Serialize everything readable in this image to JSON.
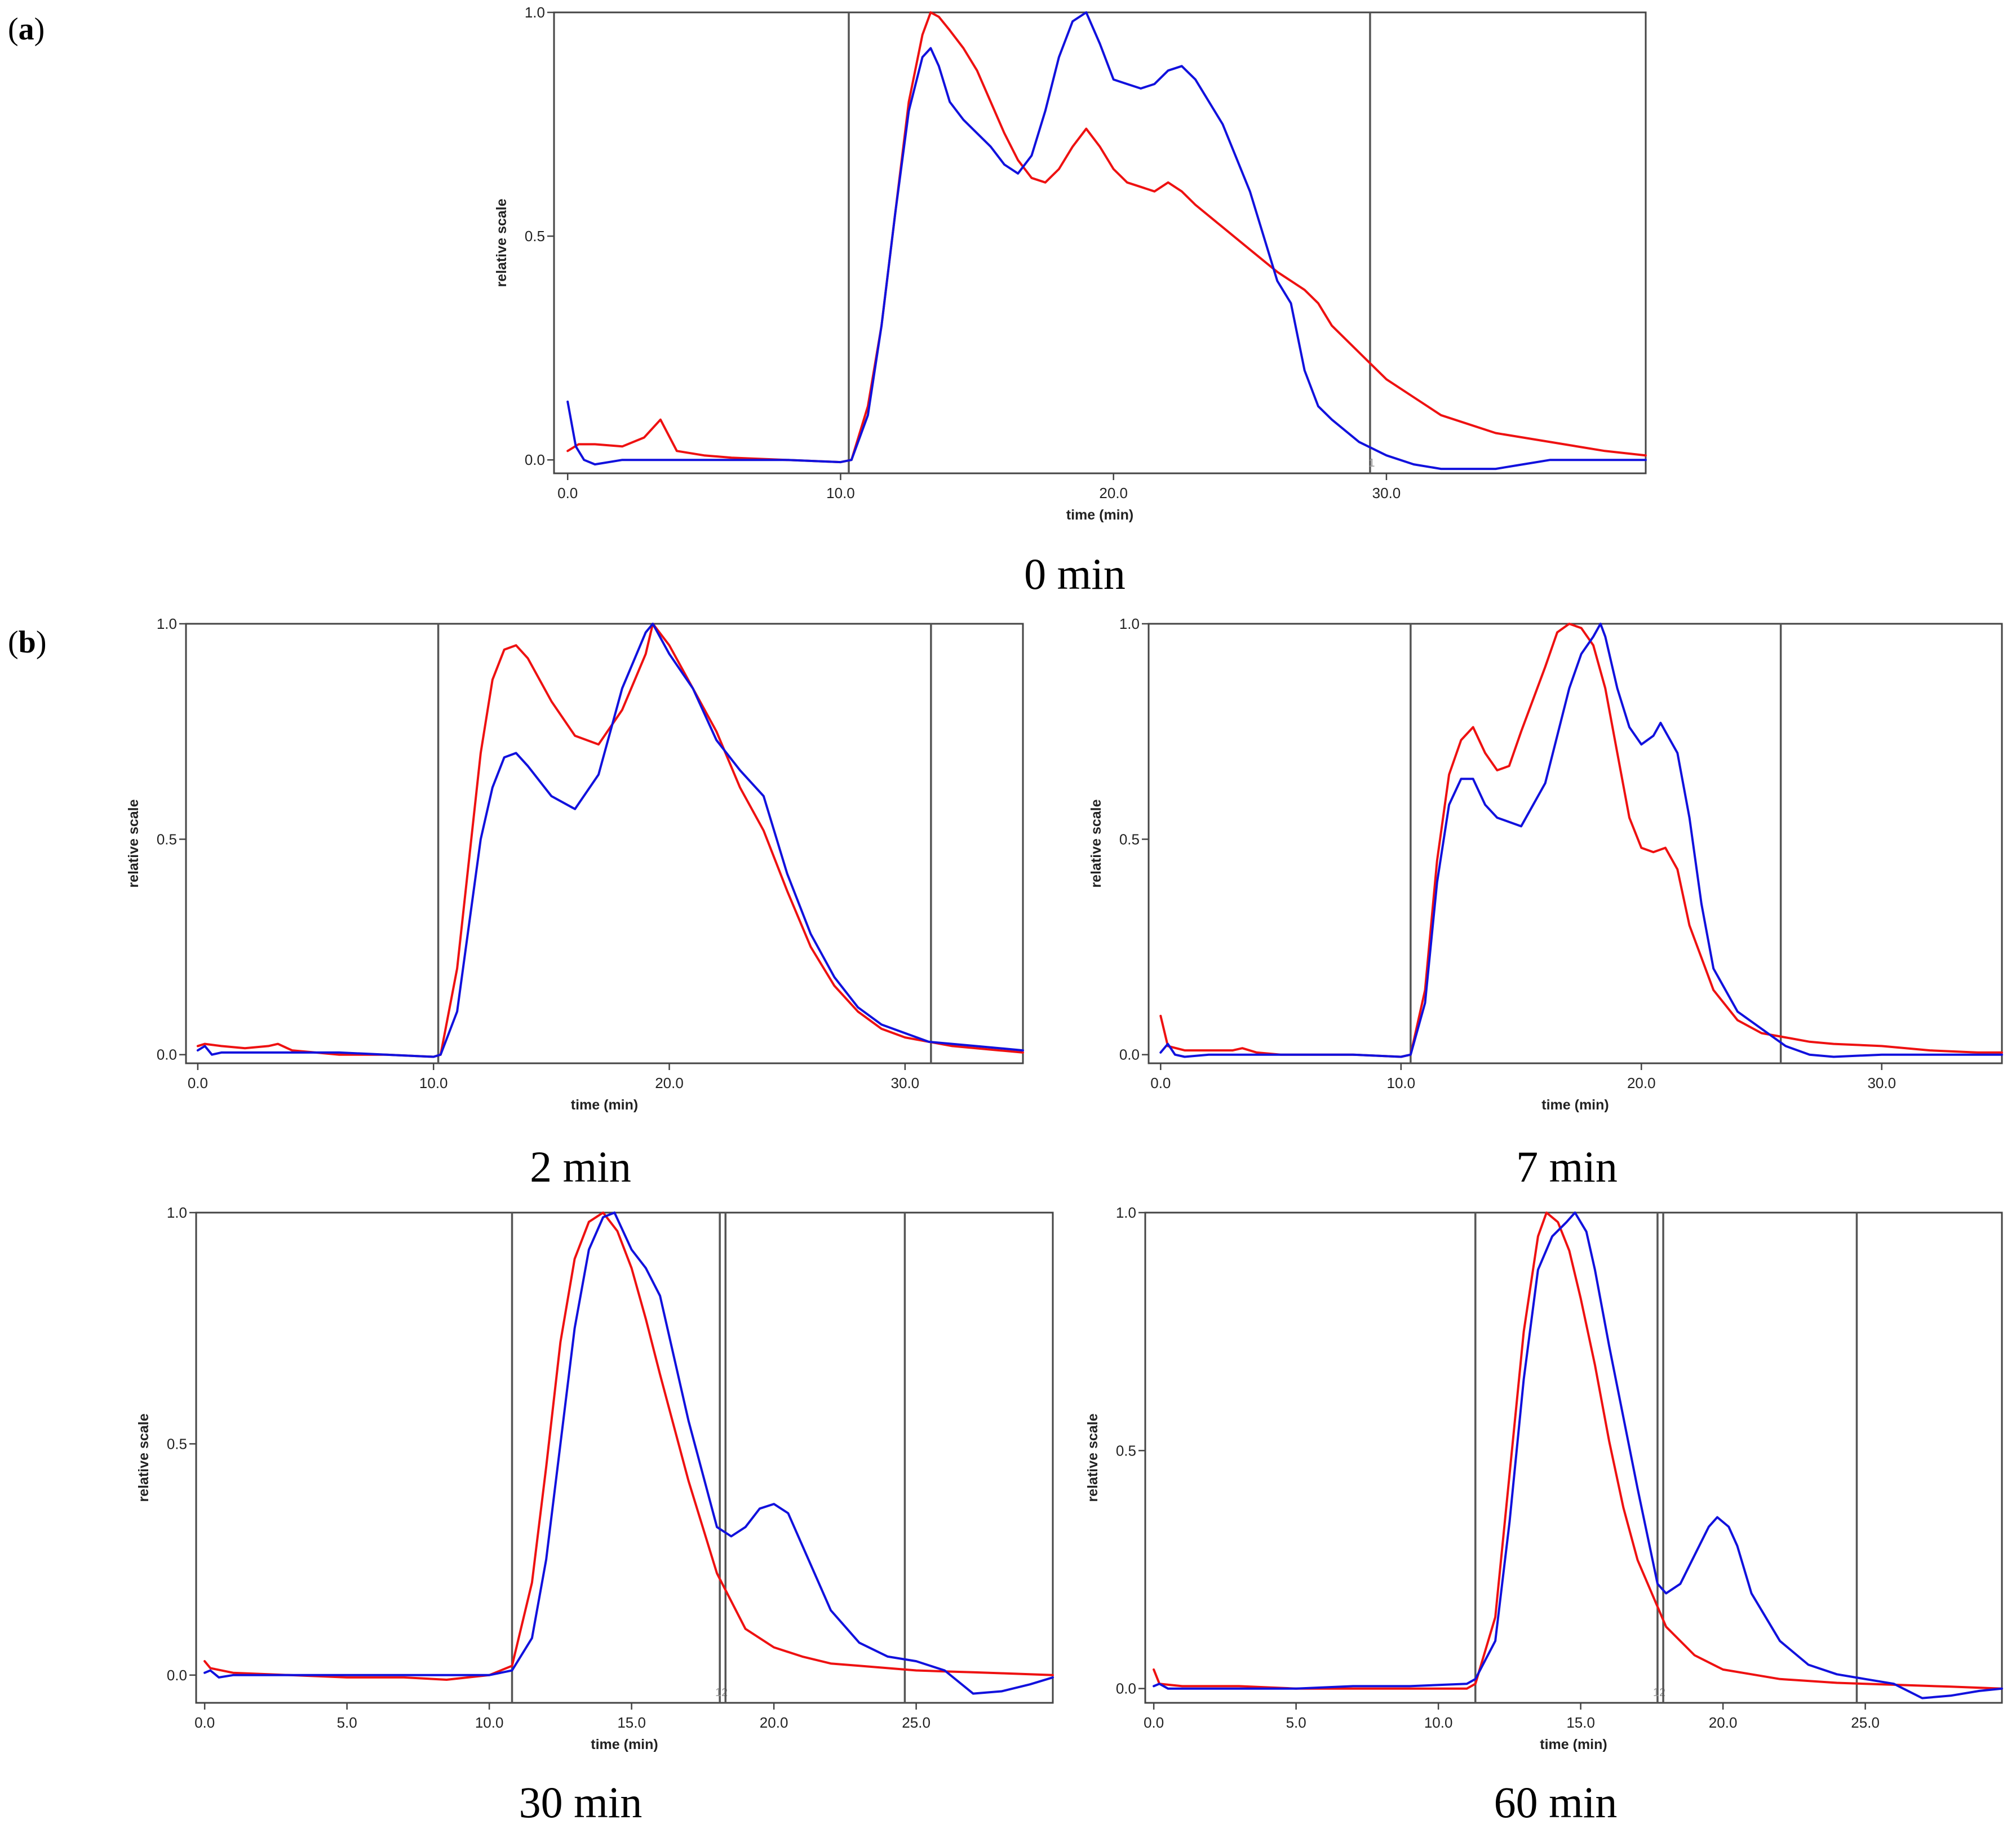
{
  "panel_labels": [
    {
      "open": "(",
      "letter": "a",
      "close": ")"
    },
    {
      "open": "(",
      "letter": "b",
      "close": ")"
    }
  ],
  "colors": {
    "red": "#ee1111",
    "blue": "#1111dd",
    "axis": "#444444",
    "vline": "#555555"
  },
  "chart_data": [
    {
      "type": "line",
      "caption": "0 min",
      "xlabel": "time (min)",
      "ylabel": "relative scale",
      "xlim": [
        -0.5,
        39.5
      ],
      "ylim": [
        -0.03,
        1.0
      ],
      "xticks": [
        0.0,
        10.0,
        20.0,
        30.0
      ],
      "xtick_labels": [
        "0.0",
        "10.0",
        "20.0",
        "30.0"
      ],
      "yticks": [
        0.0,
        0.5,
        1.0
      ],
      "ytick_labels": [
        "0.0",
        "0.5",
        "1.0"
      ],
      "vlines": [
        10.3,
        29.4
      ],
      "vline_markers": [
        "",
        "1"
      ],
      "series": [
        {
          "name": "red",
          "color": "#ee1111",
          "x": [
            0,
            0.4,
            1,
            2,
            2.8,
            3.4,
            4,
            5,
            6,
            8,
            10,
            10.4,
            11,
            11.5,
            12,
            12.5,
            13,
            13.3,
            13.6,
            14,
            14.5,
            15,
            15.5,
            16,
            16.5,
            17,
            17.5,
            18,
            18.5,
            19,
            19.5,
            20,
            20.5,
            21,
            21.5,
            22,
            22.5,
            23,
            24,
            25,
            26,
            27,
            27.5,
            28,
            29,
            30,
            31,
            32,
            34,
            36,
            38,
            39.5
          ],
          "y": [
            0.02,
            0.035,
            0.035,
            0.03,
            0.05,
            0.09,
            0.02,
            0.01,
            0.005,
            0.0,
            -0.005,
            0.0,
            0.12,
            0.3,
            0.55,
            0.8,
            0.95,
            1.0,
            0.99,
            0.96,
            0.92,
            0.87,
            0.8,
            0.73,
            0.67,
            0.63,
            0.62,
            0.65,
            0.7,
            0.74,
            0.7,
            0.65,
            0.62,
            0.61,
            0.6,
            0.62,
            0.6,
            0.57,
            0.52,
            0.47,
            0.42,
            0.38,
            0.35,
            0.3,
            0.24,
            0.18,
            0.14,
            0.1,
            0.06,
            0.04,
            0.02,
            0.01
          ]
        },
        {
          "name": "blue",
          "color": "#1111dd",
          "x": [
            0,
            0.3,
            0.6,
            1,
            2,
            4,
            6,
            8,
            10,
            10.4,
            11,
            11.5,
            12,
            12.5,
            13,
            13.3,
            13.6,
            14,
            14.5,
            15,
            15.5,
            16,
            16.5,
            17,
            17.5,
            18,
            18.5,
            19,
            19.5,
            20,
            20.5,
            21,
            21.5,
            22,
            22.5,
            23,
            24,
            25,
            26,
            26.5,
            27,
            27.5,
            28,
            29,
            30,
            31,
            32,
            33,
            34,
            35,
            36,
            37,
            38,
            39.5
          ],
          "y": [
            0.13,
            0.03,
            0.0,
            -0.01,
            0.0,
            0.0,
            0.0,
            0.0,
            -0.005,
            0.0,
            0.1,
            0.3,
            0.55,
            0.78,
            0.9,
            0.92,
            0.88,
            0.8,
            0.76,
            0.73,
            0.7,
            0.66,
            0.64,
            0.68,
            0.78,
            0.9,
            0.98,
            1.0,
            0.93,
            0.85,
            0.84,
            0.83,
            0.84,
            0.87,
            0.88,
            0.85,
            0.75,
            0.6,
            0.4,
            0.35,
            0.2,
            0.12,
            0.09,
            0.04,
            0.01,
            -0.01,
            -0.02,
            -0.02,
            -0.02,
            -0.01,
            0.0,
            0.0,
            0.0,
            0.0
          ]
        }
      ]
    },
    {
      "type": "line",
      "caption": "2 min",
      "xlabel": "time (min)",
      "ylabel": "relative scale",
      "xlim": [
        -0.5,
        35
      ],
      "ylim": [
        -0.02,
        1.0
      ],
      "xticks": [
        0.0,
        10.0,
        20.0,
        30.0
      ],
      "xtick_labels": [
        "0.0",
        "10.0",
        "20.0",
        "30.0"
      ],
      "yticks": [
        0.0,
        0.5,
        1.0
      ],
      "ytick_labels": [
        "0.0",
        "0.5",
        "1.0"
      ],
      "vlines": [
        10.2,
        31.1
      ],
      "vline_markers": [
        "",
        ""
      ],
      "series": [
        {
          "name": "red",
          "color": "#ee1111",
          "x": [
            0,
            0.3,
            1,
            2,
            3,
            3.4,
            4,
            5,
            6,
            8,
            10,
            10.3,
            11,
            11.5,
            12,
            12.5,
            13,
            13.5,
            14,
            15,
            16,
            17,
            18,
            19,
            19.3,
            20,
            21,
            22,
            23,
            24,
            25,
            26,
            27,
            28,
            29,
            30,
            31,
            32,
            33,
            34,
            35
          ],
          "y": [
            0.02,
            0.025,
            0.02,
            0.015,
            0.02,
            0.025,
            0.01,
            0.005,
            0.0,
            0.0,
            -0.005,
            0.0,
            0.2,
            0.45,
            0.7,
            0.87,
            0.94,
            0.95,
            0.92,
            0.82,
            0.74,
            0.72,
            0.8,
            0.93,
            1.0,
            0.95,
            0.85,
            0.75,
            0.62,
            0.52,
            0.38,
            0.25,
            0.16,
            0.1,
            0.06,
            0.04,
            0.03,
            0.02,
            0.015,
            0.01,
            0.005
          ]
        },
        {
          "name": "blue",
          "color": "#1111dd",
          "x": [
            0,
            0.3,
            0.6,
            1,
            2,
            4,
            6,
            8,
            10,
            10.3,
            11,
            11.5,
            12,
            12.5,
            13,
            13.5,
            14,
            15,
            16,
            17,
            18,
            19,
            19.3,
            20,
            21,
            22,
            23,
            24,
            25,
            26,
            27,
            28,
            29,
            30,
            31,
            32,
            33,
            34,
            35
          ],
          "y": [
            0.01,
            0.02,
            0.0,
            0.005,
            0.005,
            0.005,
            0.005,
            0.0,
            -0.005,
            0.0,
            0.1,
            0.3,
            0.5,
            0.62,
            0.69,
            0.7,
            0.67,
            0.6,
            0.57,
            0.65,
            0.85,
            0.98,
            1.0,
            0.93,
            0.85,
            0.73,
            0.66,
            0.6,
            0.42,
            0.28,
            0.18,
            0.11,
            0.07,
            0.05,
            0.03,
            0.025,
            0.02,
            0.015,
            0.01
          ]
        }
      ]
    },
    {
      "type": "line",
      "caption": "7 min",
      "xlabel": "time (min)",
      "ylabel": "relative scale",
      "xlim": [
        -0.5,
        35
      ],
      "ylim": [
        -0.02,
        1.0
      ],
      "xticks": [
        0.0,
        10.0,
        20.0,
        30.0
      ],
      "xtick_labels": [
        "0.0",
        "10.0",
        "20.0",
        "30.0"
      ],
      "yticks": [
        0.0,
        0.5,
        1.0
      ],
      "ytick_labels": [
        "0.0",
        "0.5",
        "1.0"
      ],
      "vlines": [
        10.4,
        25.8
      ],
      "vline_markers": [
        "",
        ""
      ],
      "series": [
        {
          "name": "red",
          "color": "#ee1111",
          "x": [
            0,
            0.3,
            1,
            2,
            3,
            3.4,
            4,
            5,
            6,
            8,
            10,
            10.4,
            11,
            11.5,
            12,
            12.5,
            13,
            13.5,
            14,
            14.5,
            15,
            16,
            16.5,
            17,
            17.5,
            18,
            18.5,
            19,
            19.5,
            20,
            20.5,
            21,
            21.5,
            22,
            23,
            24,
            25,
            26,
            27,
            28,
            30,
            32,
            34,
            35
          ],
          "y": [
            0.09,
            0.02,
            0.01,
            0.01,
            0.01,
            0.015,
            0.005,
            0.0,
            0.0,
            0.0,
            -0.005,
            0.0,
            0.15,
            0.45,
            0.65,
            0.73,
            0.76,
            0.7,
            0.66,
            0.67,
            0.75,
            0.9,
            0.98,
            1.0,
            0.99,
            0.95,
            0.85,
            0.7,
            0.55,
            0.48,
            0.47,
            0.48,
            0.43,
            0.3,
            0.15,
            0.08,
            0.05,
            0.04,
            0.03,
            0.025,
            0.02,
            0.01,
            0.005,
            0.005
          ]
        },
        {
          "name": "blue",
          "color": "#1111dd",
          "x": [
            0,
            0.3,
            0.6,
            1,
            2,
            4,
            6,
            8,
            10,
            10.4,
            11,
            11.5,
            12,
            12.5,
            13,
            13.5,
            14,
            15,
            16,
            17,
            17.5,
            18,
            18.3,
            18.5,
            19,
            19.5,
            20,
            20.5,
            20.8,
            21,
            21.5,
            22,
            22.5,
            23,
            24,
            25,
            26,
            27,
            28,
            30,
            32,
            34,
            35
          ],
          "y": [
            0.005,
            0.025,
            0.0,
            -0.005,
            0.0,
            0.0,
            0.0,
            0.0,
            -0.005,
            0.0,
            0.12,
            0.4,
            0.58,
            0.64,
            0.64,
            0.58,
            0.55,
            0.53,
            0.63,
            0.85,
            0.93,
            0.97,
            1.0,
            0.97,
            0.85,
            0.76,
            0.72,
            0.74,
            0.77,
            0.75,
            0.7,
            0.55,
            0.35,
            0.2,
            0.1,
            0.06,
            0.02,
            0.0,
            -0.005,
            0.0,
            0.0,
            0.0,
            0.0
          ]
        }
      ]
    },
    {
      "type": "line",
      "caption": "30 min",
      "xlabel": "time (min)",
      "ylabel": "relative scale",
      "xlim": [
        -0.3,
        29.8
      ],
      "ylim": [
        -0.06,
        1.0
      ],
      "xticks": [
        0.0,
        5.0,
        10.0,
        15.0,
        20.0,
        25.0
      ],
      "xtick_labels": [
        "0.0",
        "5.0",
        "10.0",
        "15.0",
        "20.0",
        "25.0"
      ],
      "yticks": [
        0.0,
        0.5,
        1.0
      ],
      "ytick_labels": [
        "0.0",
        "0.5",
        "1.0"
      ],
      "vlines": [
        10.8,
        18.1,
        18.3,
        24.6
      ],
      "vline_markers": [
        "",
        "12",
        "",
        ""
      ],
      "series": [
        {
          "name": "red",
          "color": "#ee1111",
          "x": [
            0,
            0.2,
            1,
            3,
            5,
            7,
            8.5,
            10,
            10.8,
            11.5,
            12,
            12.5,
            13,
            13.5,
            14,
            14.5,
            15,
            15.5,
            16,
            17,
            18,
            19,
            20,
            21,
            22,
            23,
            24,
            25,
            26,
            27,
            28,
            29.8
          ],
          "y": [
            0.03,
            0.015,
            0.005,
            0.0,
            -0.005,
            -0.005,
            -0.01,
            0.0,
            0.02,
            0.2,
            0.45,
            0.72,
            0.9,
            0.98,
            1.0,
            0.96,
            0.88,
            0.77,
            0.65,
            0.42,
            0.22,
            0.1,
            0.06,
            0.04,
            0.025,
            0.02,
            0.015,
            0.01,
            0.008,
            0.006,
            0.004,
            0.0
          ]
        },
        {
          "name": "blue",
          "color": "#1111dd",
          "x": [
            0,
            0.2,
            0.5,
            1,
            3,
            5,
            7,
            9,
            10,
            10.8,
            11.5,
            12,
            12.5,
            13,
            13.5,
            14,
            14.4,
            15,
            15.5,
            16,
            17,
            18,
            18.5,
            19,
            19.5,
            20,
            20.5,
            21,
            22,
            23,
            24,
            25,
            26,
            27,
            28,
            29,
            29.8
          ],
          "y": [
            0.005,
            0.01,
            -0.005,
            0.0,
            0.0,
            0.0,
            0.0,
            0.0,
            0.0,
            0.01,
            0.08,
            0.25,
            0.5,
            0.75,
            0.92,
            0.99,
            1.0,
            0.92,
            0.88,
            0.82,
            0.55,
            0.32,
            0.3,
            0.32,
            0.36,
            0.37,
            0.35,
            0.28,
            0.14,
            0.07,
            0.04,
            0.03,
            0.01,
            -0.04,
            -0.035,
            -0.02,
            -0.005
          ]
        }
      ]
    },
    {
      "type": "line",
      "caption": "60 min",
      "xlabel": "time (min)",
      "ylabel": "relative scale",
      "xlim": [
        -0.3,
        29.8
      ],
      "ylim": [
        -0.03,
        1.0
      ],
      "xticks": [
        0.0,
        5.0,
        10.0,
        15.0,
        20.0,
        25.0
      ],
      "xtick_labels": [
        "0.0",
        "5.0",
        "10.0",
        "15.0",
        "20.0",
        "25.0"
      ],
      "yticks": [
        0.0,
        0.5,
        1.0
      ],
      "ytick_labels": [
        "0.0",
        "0.5",
        "1.0"
      ],
      "vlines": [
        11.3,
        17.7,
        17.9,
        24.7
      ],
      "vline_markers": [
        "",
        "12",
        "",
        ""
      ],
      "series": [
        {
          "name": "red",
          "color": "#ee1111",
          "x": [
            0,
            0.2,
            1,
            3,
            5,
            7,
            9,
            11,
            11.3,
            12,
            12.5,
            13,
            13.5,
            13.8,
            14.2,
            14.6,
            15,
            15.5,
            16,
            16.5,
            17,
            18,
            19,
            20,
            21,
            22,
            24,
            26,
            28,
            29.8
          ],
          "y": [
            0.04,
            0.01,
            0.005,
            0.005,
            0.0,
            0.0,
            0.0,
            0.0,
            0.01,
            0.15,
            0.45,
            0.75,
            0.95,
            1.0,
            0.98,
            0.92,
            0.82,
            0.68,
            0.52,
            0.38,
            0.27,
            0.13,
            0.07,
            0.04,
            0.03,
            0.02,
            0.012,
            0.008,
            0.004,
            0.0
          ]
        },
        {
          "name": "blue",
          "color": "#1111dd",
          "x": [
            0,
            0.2,
            0.5,
            1,
            3,
            5,
            7,
            9,
            11,
            11.3,
            12,
            12.5,
            13,
            13.5,
            14,
            14.5,
            14.8,
            15.2,
            15.5,
            16,
            17,
            17.7,
            18,
            18.5,
            19,
            19.5,
            19.8,
            20.2,
            20.5,
            21,
            22,
            23,
            24,
            25,
            26,
            27,
            28,
            29,
            29.8
          ],
          "y": [
            0.005,
            0.01,
            0.0,
            0.0,
            0.0,
            0.0,
            0.005,
            0.005,
            0.01,
            0.02,
            0.1,
            0.35,
            0.65,
            0.88,
            0.95,
            0.98,
            1.0,
            0.96,
            0.88,
            0.72,
            0.42,
            0.22,
            0.2,
            0.22,
            0.28,
            0.34,
            0.36,
            0.34,
            0.3,
            0.2,
            0.1,
            0.05,
            0.03,
            0.02,
            0.01,
            -0.02,
            -0.015,
            -0.005,
            0.0
          ]
        }
      ]
    }
  ]
}
